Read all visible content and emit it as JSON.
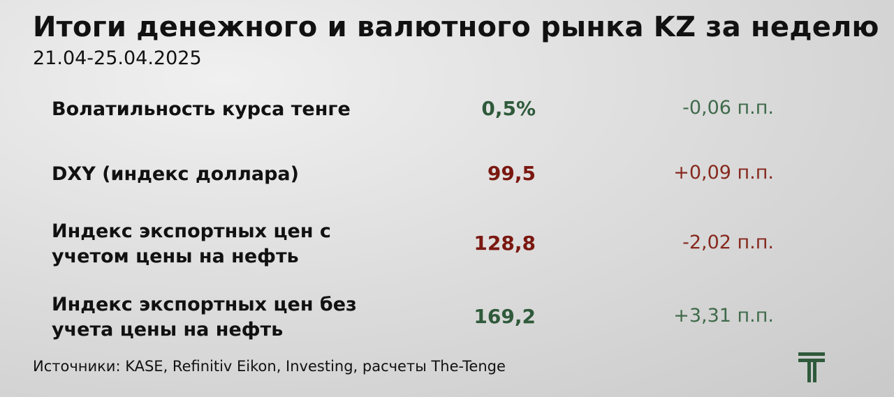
{
  "header": {
    "title": "Итоги денежного и валютного рынка KZ за неделю",
    "subtitle": "21.04-25.04.2025"
  },
  "table": {
    "rows": [
      {
        "label_lines": [
          "Волатильность курса тенге"
        ],
        "value": "0,5%",
        "change": "-0,06 п.п.",
        "value_color": "#2f5a3b",
        "change_color": "#3f6a4a"
      },
      {
        "label_lines": [
          "DXY (индекс доллара)"
        ],
        "value": "99,5",
        "change": "+0,09 п.п.",
        "value_color": "#7a1810",
        "change_color": "#86281e"
      },
      {
        "label_lines": [
          "Индекс экспортных цен с",
          "учетом цены на нефть"
        ],
        "value": "128,8",
        "change": "-2,02 п.п.",
        "value_color": "#7a1810",
        "change_color": "#86281e"
      },
      {
        "label_lines": [
          "Индекс экспортных цен без",
          "учета цены на нефть"
        ],
        "value": "169,2",
        "change": "+3,31 п.п.",
        "value_color": "#2f5a3b",
        "change_color": "#3f6a4a"
      }
    ]
  },
  "footer": {
    "source": "Источники: KASE, Refinitiv Eikon, Investing, расчеты The-Tenge"
  }
}
